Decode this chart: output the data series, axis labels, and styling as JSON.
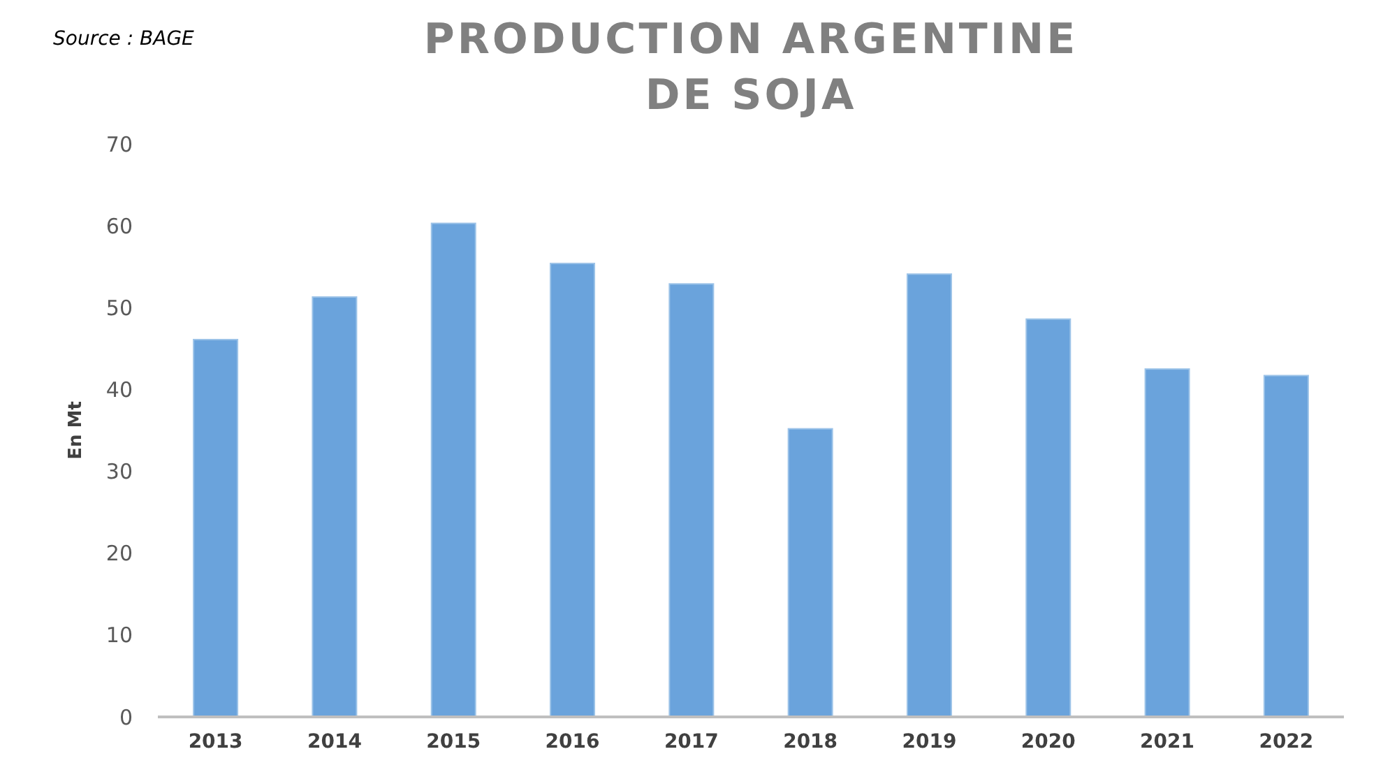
{
  "chart_data": {
    "type": "bar",
    "title": "PRODUCTION ARGENTINE DE SOJA",
    "ylabel": "En Mt",
    "annotations": [
      "Source : BAGE"
    ],
    "categories": [
      "2013",
      "2014",
      "2015",
      "2016",
      "2017",
      "2018",
      "2019",
      "2020",
      "2021",
      "2022"
    ],
    "values": [
      46.1,
      51.3,
      60.3,
      55.4,
      52.9,
      35.2,
      54.1,
      48.6,
      42.5,
      41.7
    ],
    "color": "#6aa3dc",
    "ylim": [
      0,
      70
    ],
    "yticks": [
      0,
      10,
      20,
      30,
      40,
      50,
      60,
      70
    ],
    "grid": false
  }
}
